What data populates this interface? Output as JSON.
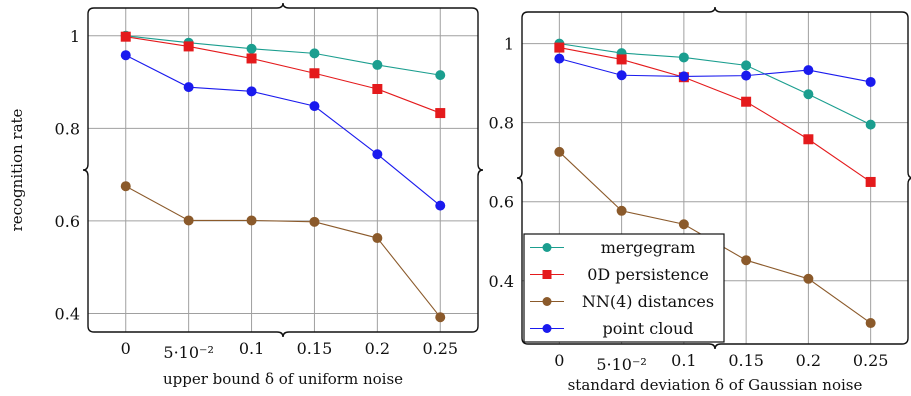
{
  "chart_data": [
    {
      "type": "line",
      "xlabel": "upper bound δ of uniform noise",
      "ylabel": "recognition rate",
      "x": [
        0,
        0.05,
        0.1,
        0.15,
        0.2,
        0.25
      ],
      "x_tick_labels": [
        "0",
        "5·10⁻²",
        "0.1",
        "0.15",
        "0.2",
        "0.25"
      ],
      "y_ticks": [
        0.4,
        0.6,
        0.8,
        1
      ],
      "y_tick_labels": [
        "0.4",
        "0.6",
        "0.8",
        "1"
      ],
      "ylim": [
        0.36,
        1.06
      ],
      "grid": true,
      "series": [
        {
          "name": "mergegram",
          "color": "#1b9e8f",
          "marker": "circle",
          "values": [
            1.0,
            0.985,
            0.972,
            0.962,
            0.937,
            0.915
          ]
        },
        {
          "name": "0D persistence",
          "color": "#e41a1c",
          "marker": "square",
          "values": [
            0.998,
            0.977,
            0.951,
            0.919,
            0.885,
            0.833
          ]
        },
        {
          "name": "NN(4) distances",
          "color": "#8b5a2b",
          "marker": "circle",
          "values": [
            0.675,
            0.601,
            0.601,
            0.598,
            0.563,
            0.392
          ]
        },
        {
          "name": "point cloud",
          "color": "#1a1aee",
          "marker": "circle",
          "values": [
            0.958,
            0.889,
            0.88,
            0.848,
            0.744,
            0.633
          ]
        }
      ]
    },
    {
      "type": "line",
      "xlabel": "standard deviation δ of Gaussian noise",
      "ylabel": "",
      "x": [
        0,
        0.05,
        0.1,
        0.15,
        0.2,
        0.25
      ],
      "x_tick_labels": [
        "0",
        "5·10⁻²",
        "0.1",
        "0.15",
        "0.2",
        "0.25"
      ],
      "y_ticks": [
        0.4,
        0.6,
        0.8,
        1
      ],
      "y_tick_labels": [
        "0.4",
        "0.6",
        "0.8",
        "1"
      ],
      "ylim": [
        0.24,
        1.08
      ],
      "grid": true,
      "legend_placement": "bottom-left",
      "series": [
        {
          "name": "mergegram",
          "color": "#1b9e8f",
          "marker": "circle",
          "values": [
            1.0,
            0.976,
            0.965,
            0.945,
            0.872,
            0.795
          ]
        },
        {
          "name": "0D persistence",
          "color": "#e41a1c",
          "marker": "square",
          "values": [
            0.99,
            0.96,
            0.915,
            0.853,
            0.758,
            0.65
          ]
        },
        {
          "name": "NN(4) distances",
          "color": "#8b5a2b",
          "marker": "circle",
          "values": [
            0.726,
            0.577,
            0.543,
            0.452,
            0.405,
            0.293
          ]
        },
        {
          "name": "point cloud",
          "color": "#1a1aee",
          "marker": "circle",
          "values": [
            0.962,
            0.92,
            0.917,
            0.919,
            0.933,
            0.903
          ]
        }
      ]
    }
  ]
}
